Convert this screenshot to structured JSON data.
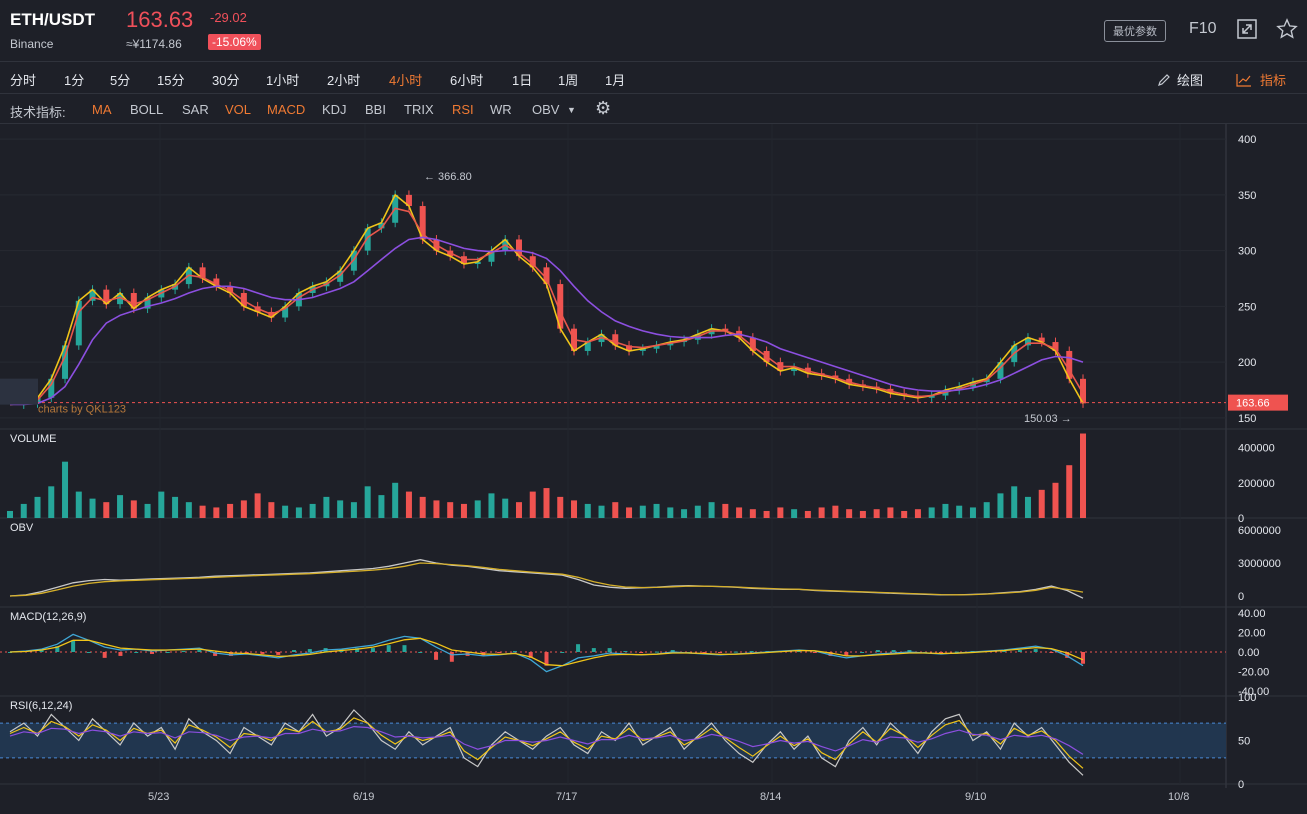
{
  "header": {
    "pair": "ETH/USDT",
    "exchange": "Binance",
    "price": "163.63",
    "change": "-29.02",
    "cny": "≈¥1174.86",
    "change_pct": "-15.06%",
    "optimal_params": "最优参数",
    "f10": "F10"
  },
  "timeframes": [
    "分时",
    "1分",
    "5分",
    "15分",
    "30分",
    "1小时",
    "2小时",
    "4小时",
    "6小时",
    "1日",
    "1周",
    "1月"
  ],
  "active_timeframe": "4小时",
  "toolbar_right": {
    "draw": "绘图",
    "indicators": "指标"
  },
  "indicator_bar": {
    "label": "技术指标:",
    "items": [
      "MA",
      "BOLL",
      "SAR",
      "VOL",
      "MACD",
      "KDJ",
      "BBI",
      "TRIX",
      "RSI",
      "WR",
      "OBV"
    ],
    "active": [
      "MA",
      "VOL",
      "MACD",
      "RSI"
    ]
  },
  "colors": {
    "up": "#26a69a",
    "down": "#ef5350",
    "accent": "#f07a33",
    "price_tag": "#ef5350"
  },
  "chart_data": [
    {
      "type": "line",
      "panel": "price",
      "watermark": "charts by QKL123",
      "y_ticks": [
        "400",
        "350",
        "300",
        "250",
        "200",
        "150"
      ],
      "ylim": [
        140,
        410
      ],
      "x_labels": [
        "5/23",
        "6/19",
        "7/17",
        "8/14",
        "9/10",
        "10/8"
      ],
      "high_label": "366.80",
      "high": 366.8,
      "low_label": "150.03",
      "low": 150.03,
      "last_price_label": "163.66",
      "last_price": 163.66,
      "series": [
        {
          "color": "#f0c419",
          "values": [
            162,
            163,
            168,
            185,
            215,
            255,
            265,
            252,
            262,
            248,
            258,
            265,
            270,
            285,
            275,
            268,
            262,
            250,
            245,
            240,
            250,
            262,
            268,
            272,
            282,
            300,
            320,
            325,
            350,
            340,
            310,
            300,
            295,
            288,
            290,
            300,
            310,
            295,
            285,
            270,
            230,
            210,
            218,
            225,
            215,
            210,
            212,
            215,
            218,
            220,
            225,
            230,
            228,
            222,
            210,
            200,
            192,
            195,
            190,
            188,
            185,
            180,
            178,
            176,
            172,
            170,
            168,
            170,
            175,
            178,
            182,
            185,
            200,
            215,
            222,
            218,
            210,
            185,
            163
          ]
        },
        {
          "color": "#e8574c",
          "values": [
            162,
            163,
            166,
            180,
            205,
            245,
            258,
            255,
            258,
            252,
            256,
            262,
            268,
            278,
            276,
            270,
            264,
            255,
            248,
            243,
            248,
            258,
            265,
            270,
            278,
            292,
            312,
            320,
            338,
            335,
            315,
            305,
            298,
            292,
            292,
            298,
            305,
            298,
            288,
            275,
            245,
            220,
            218,
            222,
            218,
            214,
            213,
            215,
            217,
            219,
            223,
            228,
            228,
            224,
            214,
            205,
            196,
            196,
            192,
            189,
            186,
            182,
            179,
            177,
            174,
            171,
            169,
            170,
            173,
            176,
            180,
            184,
            195,
            208,
            217,
            217,
            212,
            193,
            172
          ]
        },
        {
          "color": "#8c4fe0",
          "values": [
            162,
            162,
            163,
            168,
            178,
            198,
            220,
            235,
            242,
            246,
            250,
            253,
            257,
            262,
            266,
            268,
            268,
            266,
            262,
            258,
            256,
            256,
            258,
            262,
            266,
            272,
            282,
            292,
            302,
            310,
            312,
            310,
            306,
            302,
            300,
            299,
            300,
            300,
            298,
            293,
            282,
            268,
            255,
            245,
            237,
            232,
            228,
            225,
            223,
            222,
            222,
            222,
            224,
            225,
            222,
            218,
            212,
            208,
            204,
            200,
            196,
            192,
            188,
            184,
            180,
            177,
            175,
            174,
            174,
            175,
            177,
            180,
            184,
            190,
            196,
            202,
            205,
            204,
            200
          ]
        }
      ]
    },
    {
      "type": "bar",
      "panel": "volume",
      "title": "VOLUME",
      "y_ticks": [
        "400000",
        "200000",
        "0"
      ],
      "ylim": [
        0,
        500000
      ],
      "values": [
        40000,
        80000,
        120000,
        180000,
        320000,
        150000,
        110000,
        90000,
        130000,
        100000,
        80000,
        150000,
        120000,
        90000,
        70000,
        60000,
        80000,
        100000,
        140000,
        90000,
        70000,
        60000,
        80000,
        120000,
        100000,
        90000,
        180000,
        130000,
        200000,
        150000,
        120000,
        100000,
        90000,
        80000,
        100000,
        140000,
        110000,
        90000,
        150000,
        170000,
        120000,
        100000,
        80000,
        70000,
        90000,
        60000,
        70000,
        80000,
        60000,
        50000,
        70000,
        90000,
        80000,
        60000,
        50000,
        40000,
        60000,
        50000,
        40000,
        60000,
        70000,
        50000,
        40000,
        50000,
        60000,
        40000,
        50000,
        60000,
        80000,
        70000,
        60000,
        90000,
        140000,
        180000,
        120000,
        160000,
        200000,
        300000,
        480000
      ]
    },
    {
      "type": "line",
      "panel": "obv",
      "title": "OBV",
      "y_ticks": [
        "6000000",
        "3000000",
        "0"
      ],
      "ylim": [
        -1000000,
        7000000
      ],
      "series": [
        {
          "color": "#c8c8c8",
          "values": [
            0,
            100000,
            400000,
            800000,
            1200000,
            1400000,
            1500000,
            1450000,
            1500000,
            1550000,
            1600000,
            1650000,
            1700000,
            1800000,
            1850000,
            1900000,
            1950000,
            2000000,
            2050000,
            2100000,
            2200000,
            2300000,
            2400000,
            2500000,
            2700000,
            3000000,
            3300000,
            3000000,
            2800000,
            2700000,
            2500000,
            2300000,
            2200000,
            2100000,
            2000000,
            1900000,
            1500000,
            1000000,
            800000,
            700000,
            750000,
            800000,
            900000,
            950000,
            900000,
            850000,
            800000,
            700000,
            650000,
            600000,
            600000,
            500000,
            450000,
            400000,
            350000,
            300000,
            250000,
            200000,
            150000,
            100000,
            100000,
            150000,
            200000,
            300000,
            400000,
            600000,
            900000,
            500000,
            -200000
          ]
        },
        {
          "color": "#d6b02a",
          "values": [
            0,
            60000,
            250000,
            550000,
            900000,
            1150000,
            1300000,
            1380000,
            1430000,
            1480000,
            1530000,
            1580000,
            1630000,
            1700000,
            1760000,
            1820000,
            1880000,
            1930000,
            1980000,
            2030000,
            2100000,
            2180000,
            2260000,
            2350000,
            2480000,
            2700000,
            3000000,
            2950000,
            2850000,
            2750000,
            2600000,
            2420000,
            2300000,
            2180000,
            2080000,
            1980000,
            1700000,
            1300000,
            1000000,
            820000,
            770000,
            780000,
            840000,
            900000,
            890000,
            860000,
            820000,
            750000,
            690000,
            640000,
            610000,
            540000,
            480000,
            430000,
            380000,
            330000,
            280000,
            230000,
            180000,
            130000,
            110000,
            130000,
            180000,
            260000,
            350000,
            520000,
            780000,
            600000,
            350000
          ]
        }
      ]
    },
    {
      "type": "line",
      "panel": "macd",
      "title": "MACD(12,26,9)",
      "y_ticks": [
        "40.00",
        "20.00",
        "0.00",
        "-20.00",
        "-40.00"
      ],
      "ylim": [
        -45,
        45
      ],
      "series": [
        {
          "color": "#3fa7d6",
          "values": [
            0,
            1,
            3,
            8,
            18,
            12,
            5,
            2,
            3,
            1,
            2,
            3,
            4,
            -1,
            -3,
            -2,
            -4,
            -6,
            -3,
            -1,
            2,
            3,
            5,
            7,
            12,
            16,
            14,
            5,
            -3,
            -2,
            -4,
            -3,
            -1,
            -8,
            -20,
            -14,
            -6,
            -4,
            -1,
            -2,
            -3,
            -2,
            0,
            -1,
            -2,
            -3,
            -2,
            -1,
            0,
            1,
            2,
            1,
            -3,
            -6,
            -4,
            -2,
            -1,
            0,
            -1,
            -2,
            -1,
            0,
            1,
            2,
            4,
            6,
            3,
            -4,
            -14
          ]
        },
        {
          "color": "#f0c419",
          "values": [
            0,
            0.5,
            2,
            5,
            12,
            12,
            8,
            4,
            3,
            2,
            2,
            2.5,
            3,
            1,
            -1,
            -1.5,
            -3,
            -4.5,
            -4,
            -2.5,
            0,
            1.5,
            3,
            5,
            8.5,
            12.5,
            14,
            9,
            2,
            0,
            -2,
            -2.5,
            -1.5,
            -5,
            -13,
            -14,
            -10,
            -6,
            -3,
            -2.5,
            -2.8,
            -2.2,
            -1,
            -1,
            -1.5,
            -2.5,
            -2.2,
            -1.5,
            -0.5,
            0.5,
            1.5,
            1.2,
            -1,
            -4,
            -4,
            -3,
            -2,
            -1,
            -1,
            -1.5,
            -1.2,
            -0.5,
            0.5,
            1.5,
            3,
            4.5,
            3.5,
            -1,
            -8
          ]
        }
      ]
    },
    {
      "type": "line",
      "panel": "rsi",
      "title": "RSI(6,12,24)",
      "y_ticks": [
        "100",
        "50",
        "0"
      ],
      "ylim": [
        0,
        100
      ],
      "band": [
        30,
        70
      ],
      "series": [
        {
          "color": "#c8c8c8",
          "values": [
            60,
            70,
            55,
            80,
            65,
            50,
            75,
            60,
            45,
            70,
            55,
            65,
            40,
            75,
            60,
            50,
            35,
            65,
            55,
            45,
            70,
            60,
            80,
            55,
            65,
            85,
            70,
            50,
            40,
            60,
            45,
            55,
            65,
            30,
            20,
            45,
            60,
            50,
            40,
            55,
            65,
            45,
            35,
            60,
            50,
            70,
            45,
            55,
            65,
            40,
            55,
            70,
            50,
            35,
            25,
            45,
            60,
            40,
            55,
            30,
            20,
            50,
            65,
            45,
            70,
            55,
            35,
            60,
            75,
            80,
            50,
            60,
            40,
            70,
            55,
            65,
            45,
            25,
            10
          ]
        },
        {
          "color": "#f0c419",
          "values": [
            58,
            65,
            58,
            72,
            66,
            55,
            68,
            62,
            50,
            64,
            58,
            62,
            47,
            68,
            62,
            54,
            42,
            58,
            56,
            50,
            64,
            60,
            72,
            60,
            63,
            76,
            70,
            56,
            46,
            56,
            50,
            54,
            60,
            38,
            28,
            42,
            54,
            50,
            44,
            52,
            60,
            48,
            40,
            55,
            52,
            64,
            50,
            54,
            60,
            45,
            53,
            64,
            53,
            42,
            32,
            44,
            55,
            44,
            52,
            36,
            28,
            46,
            60,
            48,
            64,
            56,
            42,
            56,
            68,
            73,
            56,
            58,
            46,
            64,
            56,
            61,
            50,
            32,
            18
          ]
        },
        {
          "color": "#8c4fe0",
          "values": [
            55,
            60,
            58,
            64,
            63,
            58,
            62,
            60,
            55,
            60,
            58,
            59,
            53,
            60,
            59,
            56,
            50,
            54,
            55,
            53,
            58,
            58,
            63,
            60,
            61,
            66,
            65,
            60,
            54,
            55,
            53,
            54,
            56,
            46,
            40,
            44,
            50,
            50,
            48,
            50,
            54,
            50,
            46,
            51,
            51,
            56,
            52,
            53,
            56,
            50,
            52,
            57,
            54,
            49,
            43,
            46,
            50,
            47,
            49,
            43,
            38,
            44,
            51,
            48,
            54,
            53,
            48,
            52,
            58,
            62,
            57,
            56,
            51,
            56,
            54,
            56,
            52,
            44,
            34
          ]
        }
      ]
    }
  ]
}
